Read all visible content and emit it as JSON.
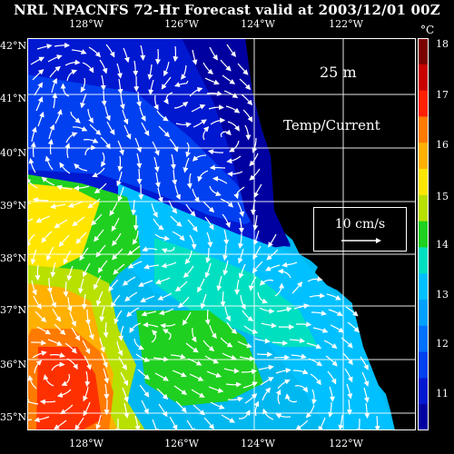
{
  "title": "NRL NPACNFS 72-Hr Forecast valid at 2003/12/01 00Z",
  "depth_label": "25 m",
  "field_label": "Temp/Current",
  "scale_label": "10 cm/s",
  "colorbar": {
    "unit": "°C",
    "labels": [
      "18",
      "17",
      "16",
      "15",
      "14",
      "13",
      "12",
      "11"
    ],
    "colors": [
      "#7a0000",
      "#c80000",
      "#ff2000",
      "#ff7a00",
      "#ffb000",
      "#ffe600",
      "#b8e000",
      "#20d020",
      "#00e0c0",
      "#00c0ff",
      "#00a0ff",
      "#0070ff",
      "#0040f0",
      "#0018d0",
      "#0000a0"
    ]
  },
  "lon_labels": [
    "128°W",
    "126°W",
    "124°W",
    "122°W"
  ],
  "lat_labels": [
    "42°N",
    "41°N",
    "40°N",
    "39°N",
    "38°N",
    "37°N",
    "36°N",
    "35°N"
  ]
}
